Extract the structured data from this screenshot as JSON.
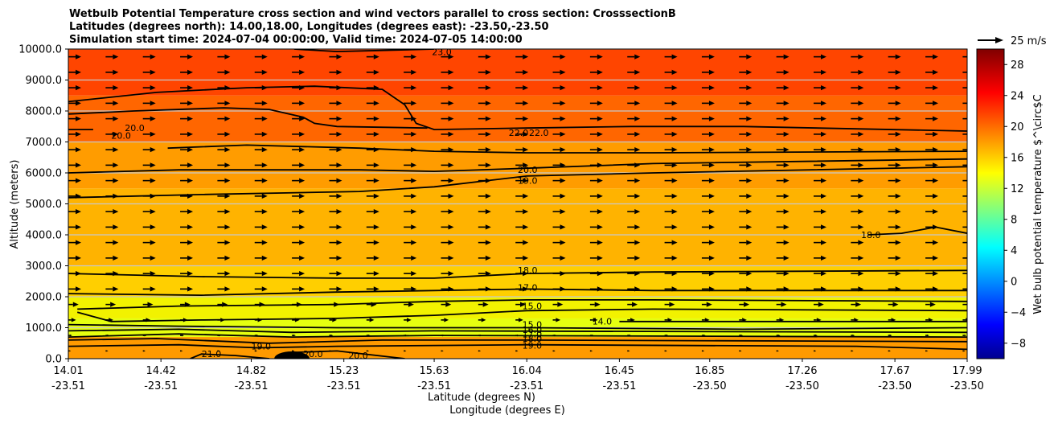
{
  "chart_data": {
    "type": "heatmap",
    "title_lines": [
      "Wetbulb Potential Temperature cross section and wind vectors parallel to cross section: CrosssectionB",
      "Latitudes (degrees north): 14.00,18.00, Longitudes (degrees east): -23.50,-23.50",
      "Simulation start time: 2024-07-04 00:00:00, Valid time: 2024-07-05 14:00:00"
    ],
    "xlabel": "Latitude (degrees N)",
    "xlabel2": "Longitude (degrees E)",
    "ylabel": "Altitude (meters)",
    "colorbar_label": "Wet bulb potential temperature $^\\circ$C",
    "quiver_key_label": "25 m/s",
    "x_lat_range": [
      14.01,
      17.99
    ],
    "x_ticks": [
      {
        "lat": "14.01",
        "lon": "-23.51",
        "v": 14.01
      },
      {
        "lat": "14.42",
        "lon": "-23.51",
        "v": 14.42
      },
      {
        "lat": "14.82",
        "lon": "-23.51",
        "v": 14.82
      },
      {
        "lat": "15.23",
        "lon": "-23.51",
        "v": 15.23
      },
      {
        "lat": "15.63",
        "lon": "-23.51",
        "v": 15.63
      },
      {
        "lat": "16.04",
        "lon": "-23.51",
        "v": 16.04
      },
      {
        "lat": "16.45",
        "lon": "-23.51",
        "v": 16.45
      },
      {
        "lat": "16.85",
        "lon": "-23.50",
        "v": 16.85
      },
      {
        "lat": "17.26",
        "lon": "-23.50",
        "v": 17.26
      },
      {
        "lat": "17.67",
        "lon": "-23.50",
        "v": 17.67
      },
      {
        "lat": "17.99",
        "lon": "-23.50",
        "v": 17.99
      }
    ],
    "ylim": [
      0,
      10000
    ],
    "y_ticks": [
      "0.0",
      "1000.0",
      "2000.0",
      "3000.0",
      "4000.0",
      "5000.0",
      "6000.0",
      "7000.0",
      "8000.0",
      "9000.0",
      "10000.0"
    ],
    "grid": true,
    "colorbar_range": [
      -10,
      30
    ],
    "colorbar_ticks": [
      "28",
      "24",
      "20",
      "16",
      "12",
      "8",
      "4",
      "0",
      "−4",
      "−8"
    ],
    "colormap": "jet",
    "field_bands": [
      {
        "alt_from": 0,
        "alt_to": 700,
        "value": 20.5,
        "color": "#ff9a00"
      },
      {
        "alt_from": 700,
        "alt_to": 1300,
        "value": 15.5,
        "color": "#e6ff10"
      },
      {
        "alt_from": 1300,
        "alt_to": 2000,
        "value": 16.5,
        "color": "#f2f200"
      },
      {
        "alt_from": 2000,
        "alt_to": 3000,
        "value": 17.5,
        "color": "#ffcf00"
      },
      {
        "alt_from": 3000,
        "alt_to": 5500,
        "value": 18.5,
        "color": "#ffb300"
      },
      {
        "alt_from": 5500,
        "alt_to": 7000,
        "value": 20.0,
        "color": "#ff9c00"
      },
      {
        "alt_from": 7000,
        "alt_to": 8500,
        "value": 22.0,
        "color": "#ff6600"
      },
      {
        "alt_from": 8500,
        "alt_to": 10000,
        "value": 23.5,
        "color": "#ff4500"
      }
    ],
    "contours": [
      {
        "level": "23.0",
        "points": [
          [
            15.01,
            10000
          ],
          [
            15.2,
            9920
          ],
          [
            15.63,
            10000
          ]
        ],
        "labels": [
          {
            "text": "23.0",
            "lat": 15.62,
            "alt": 9800
          }
        ]
      },
      {
        "level": "22.0",
        "points": [
          [
            14.01,
            8300
          ],
          [
            14.4,
            8600
          ],
          [
            14.8,
            8750
          ],
          [
            15.1,
            8800
          ],
          [
            15.4,
            8700
          ],
          [
            15.5,
            8200
          ],
          [
            15.55,
            7600
          ],
          [
            15.63,
            7400
          ],
          [
            16.04,
            7450
          ],
          [
            16.5,
            7500
          ],
          [
            17.0,
            7500
          ],
          [
            17.99,
            7350
          ]
        ],
        "labels": [
          {
            "text": "22.0",
            "lat": 15.96,
            "alt": 7200
          },
          {
            "text": "22.0",
            "lat": 16.05,
            "alt": 7200
          }
        ]
      },
      {
        "level": "21.5",
        "points": [
          [
            14.01,
            7900
          ],
          [
            14.3,
            8000
          ],
          [
            14.7,
            8100
          ],
          [
            14.9,
            8050
          ],
          [
            15.05,
            7800
          ],
          [
            15.1,
            7600
          ],
          [
            15.2,
            7500
          ],
          [
            15.6,
            7450
          ]
        ],
        "labels": []
      },
      {
        "level": "20.0 (a)",
        "points": [
          [
            14.01,
            7400
          ],
          [
            14.12,
            7400
          ]
        ],
        "labels": [
          {
            "text": "20.0",
            "lat": 14.26,
            "alt": 7350
          },
          {
            "text": "20.0",
            "lat": 14.2,
            "alt": 7100
          }
        ]
      },
      {
        "level": "21.0",
        "points": [
          [
            14.45,
            6800
          ],
          [
            14.8,
            6900
          ],
          [
            15.3,
            6800
          ],
          [
            15.63,
            6700
          ],
          [
            16.04,
            6650
          ],
          [
            16.6,
            6650
          ],
          [
            17.99,
            6700
          ]
        ],
        "labels": []
      },
      {
        "level": "20.0",
        "points": [
          [
            14.01,
            6000
          ],
          [
            14.5,
            6100
          ],
          [
            15.3,
            6100
          ],
          [
            15.63,
            6050
          ],
          [
            16.04,
            6150
          ],
          [
            16.6,
            6300
          ],
          [
            17.99,
            6450
          ]
        ],
        "labels": [
          {
            "text": "20.0",
            "lat": 16.0,
            "alt": 6000
          }
        ]
      },
      {
        "level": "19.0",
        "points": [
          [
            14.01,
            5200
          ],
          [
            14.6,
            5300
          ],
          [
            15.3,
            5400
          ],
          [
            15.63,
            5550
          ],
          [
            16.04,
            5900
          ],
          [
            16.6,
            6000
          ],
          [
            17.99,
            6200
          ]
        ],
        "labels": [
          {
            "text": "19.0",
            "lat": 16.0,
            "alt": 5650
          }
        ]
      },
      {
        "level": "18.0 (a)",
        "points": [
          [
            17.55,
            4000
          ],
          [
            17.7,
            4050
          ],
          [
            17.85,
            4250
          ],
          [
            17.99,
            4050
          ]
        ],
        "labels": [
          {
            "text": "18.0",
            "lat": 17.52,
            "alt": 3900
          }
        ]
      },
      {
        "level": "18.0",
        "points": [
          [
            14.01,
            2750
          ],
          [
            14.6,
            2650
          ],
          [
            15.2,
            2600
          ],
          [
            15.63,
            2600
          ],
          [
            16.04,
            2750
          ],
          [
            16.6,
            2800
          ],
          [
            17.99,
            2850
          ]
        ],
        "labels": [
          {
            "text": "18.0",
            "lat": 16.0,
            "alt": 2750
          }
        ]
      },
      {
        "level": "17.0",
        "points": [
          [
            14.01,
            2100
          ],
          [
            14.6,
            2050
          ],
          [
            15.2,
            2150
          ],
          [
            15.63,
            2200
          ],
          [
            16.04,
            2250
          ],
          [
            16.6,
            2200
          ],
          [
            17.99,
            2200
          ]
        ],
        "labels": [
          {
            "text": "17.0",
            "lat": 16.0,
            "alt": 2200
          }
        ]
      },
      {
        "level": "16.0",
        "points": [
          [
            14.05,
            1600
          ],
          [
            14.5,
            1700
          ],
          [
            15.2,
            1750
          ],
          [
            15.63,
            1850
          ],
          [
            16.04,
            1900
          ],
          [
            16.6,
            1900
          ],
          [
            17.99,
            1850
          ]
        ],
        "labels": []
      },
      {
        "level": "15.0",
        "points": [
          [
            14.05,
            1500
          ],
          [
            14.2,
            1200
          ],
          [
            14.6,
            1250
          ],
          [
            15.2,
            1300
          ],
          [
            15.63,
            1400
          ],
          [
            16.04,
            1550
          ],
          [
            16.6,
            1600
          ],
          [
            17.99,
            1550
          ]
        ],
        "labels": [
          {
            "text": "15.0",
            "lat": 16.02,
            "alt": 1600
          }
        ]
      },
      {
        "level": "14.0",
        "points": [
          [
            16.45,
            1200
          ],
          [
            17.99,
            1200
          ]
        ],
        "labels": [
          {
            "text": "14.0",
            "lat": 16.33,
            "alt": 1100
          }
        ]
      },
      {
        "level": "15.0 (b)",
        "points": [
          [
            14.01,
            1100
          ],
          [
            14.5,
            1050
          ],
          [
            15.2,
            1000
          ],
          [
            15.63,
            1000
          ],
          [
            16.04,
            1000
          ],
          [
            17.0,
            950
          ],
          [
            17.99,
            1000
          ]
        ],
        "labels": [
          {
            "text": "15.0",
            "lat": 16.02,
            "alt": 1000
          }
        ]
      },
      {
        "level": "16.0 (b)",
        "points": [
          [
            14.01,
            900
          ],
          [
            14.5,
            950
          ],
          [
            15.0,
            850
          ],
          [
            15.63,
            900
          ],
          [
            17.99,
            850
          ]
        ],
        "labels": [
          {
            "text": "16.0",
            "lat": 16.02,
            "alt": 830
          }
        ]
      },
      {
        "level": "17.0 (b)",
        "points": [
          [
            14.01,
            700
          ],
          [
            14.5,
            800
          ],
          [
            15.0,
            700
          ],
          [
            15.63,
            750
          ],
          [
            17.99,
            700
          ]
        ],
        "labels": [
          {
            "text": "17.0",
            "lat": 16.02,
            "alt": 690
          }
        ]
      },
      {
        "level": "18.0 (b)",
        "points": [
          [
            14.01,
            600
          ],
          [
            14.4,
            650
          ],
          [
            14.9,
            500
          ],
          [
            15.4,
            600
          ],
          [
            16.04,
            600
          ],
          [
            17.99,
            550
          ]
        ],
        "labels": [
          {
            "text": "18.0",
            "lat": 16.02,
            "alt": 550
          }
        ]
      },
      {
        "level": "19.0 (b)",
        "points": [
          [
            14.01,
            400
          ],
          [
            14.5,
            450
          ],
          [
            14.85,
            350
          ],
          [
            15.2,
            400
          ],
          [
            16.04,
            450
          ],
          [
            17.5,
            400
          ],
          [
            17.99,
            300
          ]
        ],
        "labels": [
          {
            "text": "19.0",
            "lat": 14.82,
            "alt": 300
          },
          {
            "text": "19.0",
            "lat": 16.02,
            "alt": 330
          }
        ]
      },
      {
        "level": "20.0 (b)",
        "points": [
          [
            15.0,
            200
          ],
          [
            15.2,
            250
          ],
          [
            15.5,
            0
          ]
        ],
        "labels": [
          {
            "text": "20.0",
            "lat": 15.05,
            "alt": 50
          },
          {
            "text": "20.0",
            "lat": 15.25,
            "alt": 0
          }
        ]
      },
      {
        "level": "21.0",
        "points": [
          [
            14.55,
            0
          ],
          [
            14.6,
            150
          ],
          [
            14.75,
            100
          ],
          [
            14.9,
            0
          ]
        ],
        "labels": [
          {
            "text": "21.0",
            "lat": 14.6,
            "alt": 50
          }
        ]
      }
    ],
    "wind_vectors": {
      "lat_start": 14.01,
      "lat_step": 0.165,
      "count": 25,
      "alt_start": 250,
      "alt_step": 500,
      "rows": 20,
      "speeds_by_row_m_s": [
        2,
        3,
        6,
        8,
        10,
        10,
        10,
        10,
        10,
        10,
        10,
        10,
        10,
        10,
        10,
        10,
        10,
        10,
        10,
        10
      ]
    }
  }
}
